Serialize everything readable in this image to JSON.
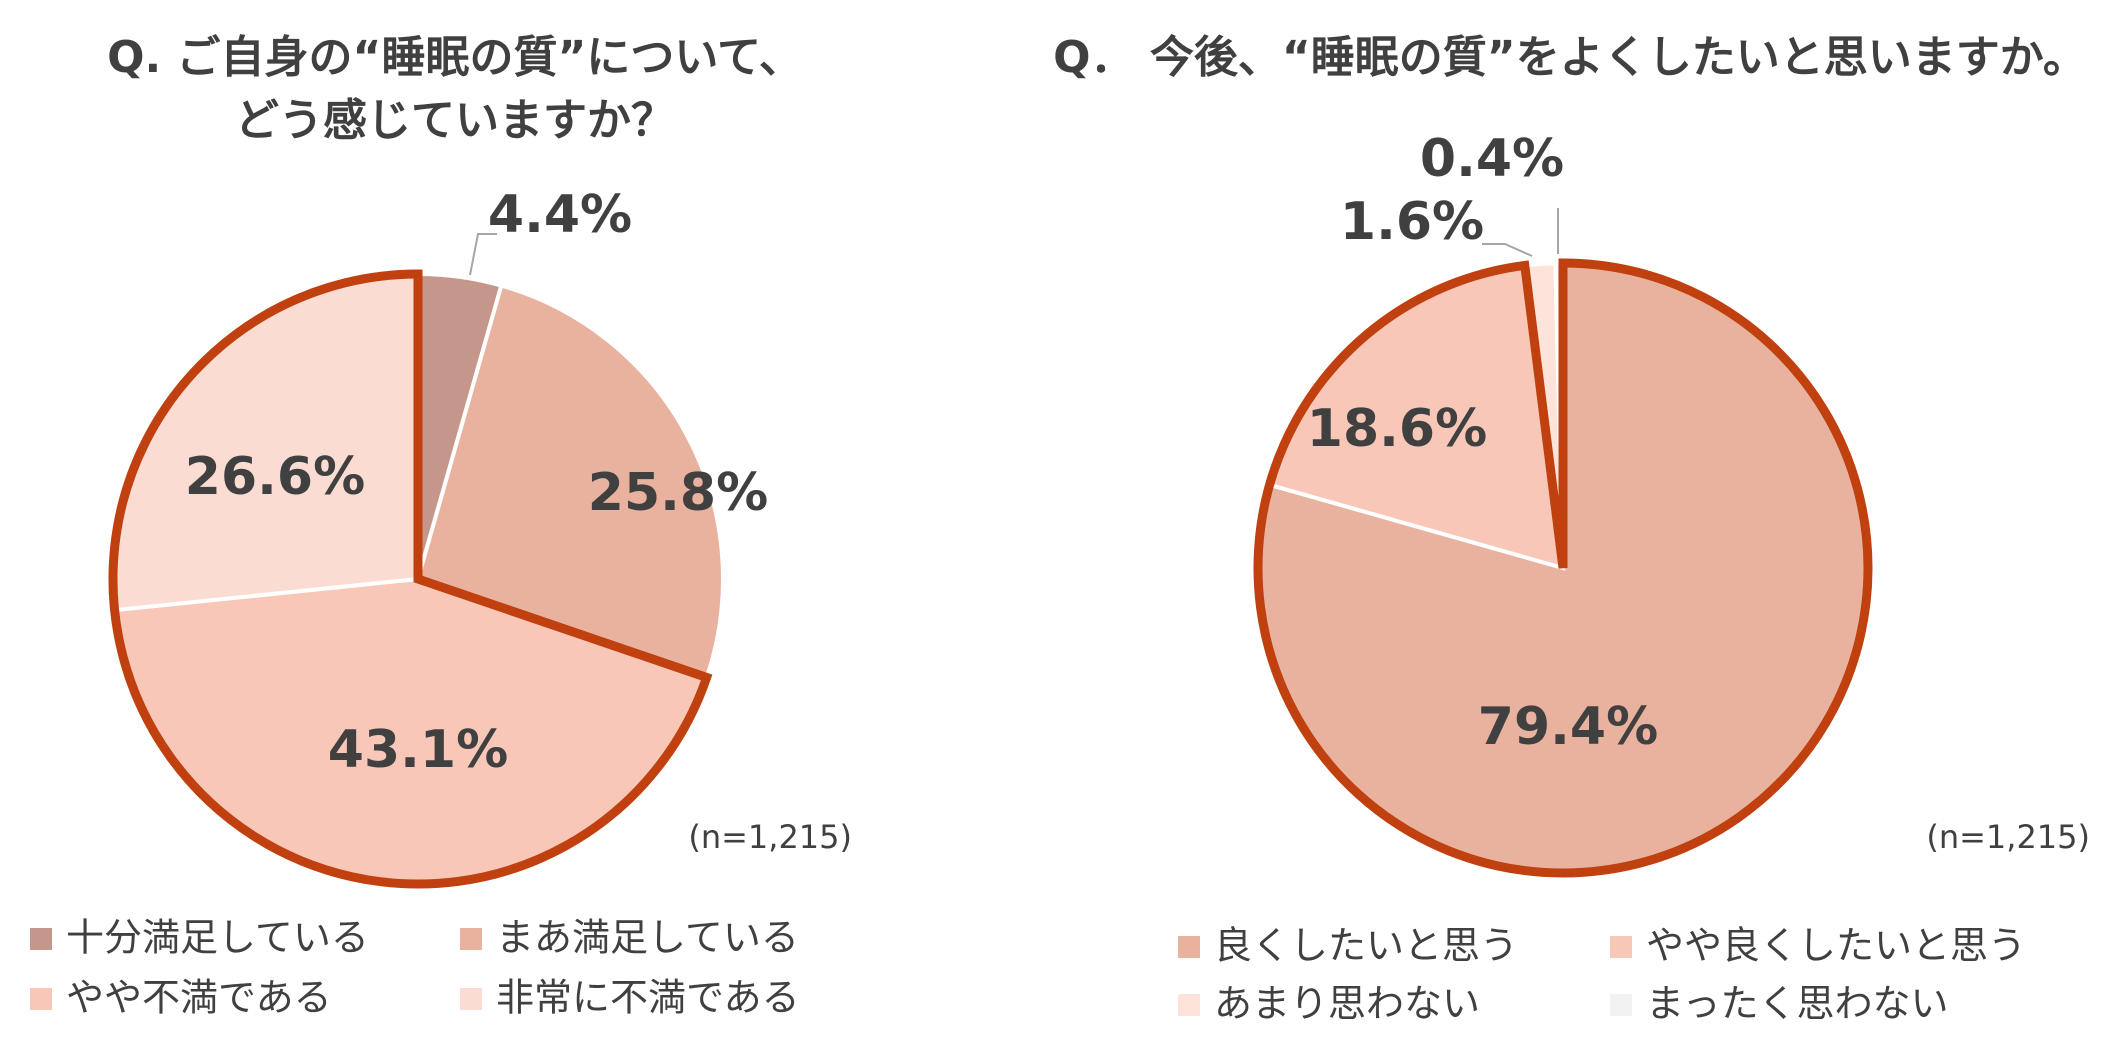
{
  "charts": [
    {
      "title_line1": "Q.  ご自身の“睡眠の質”について、",
      "title_line2": "どう感じていますか？",
      "sample": "(n=1,215)",
      "legend_order": [
        0,
        1,
        2,
        3
      ]
    },
    {
      "title_line1": "Q．  今後、“睡眠の質”をよくしたいと思いますか。",
      "title_line2": "",
      "sample": "(n=1,215)",
      "legend_order": [
        0,
        1,
        2,
        3
      ]
    }
  ],
  "chart_data": [
    {
      "type": "pie",
      "title": "Q.  ご自身の“睡眠の質”について、どう感じていますか？",
      "categories": [
        "十分満足している",
        "まあ満足している",
        "やや不満である",
        "非常に不満である"
      ],
      "values": [
        4.4,
        25.8,
        43.1,
        26.6
      ],
      "labels": [
        "4.4%",
        "25.8%",
        "43.1%",
        "26.6%"
      ],
      "colors": [
        "#c5978a",
        "#e8b29f",
        "#f8c7b7",
        "#fbdcd2"
      ],
      "highlight_color": "#c0400f",
      "highlighted_group": [
        "やや不満である",
        "非常に不満である"
      ],
      "start_angle_deg": 0,
      "direction": "clockwise",
      "legend_placement": "bottom"
    },
    {
      "type": "pie",
      "title": "Q．  今後、“睡眠の質”をよくしたいと思いますか。",
      "categories": [
        "良くしたいと思う",
        "やや良くしたいと思う",
        "あまり思わない",
        "まったく思わない"
      ],
      "values": [
        79.4,
        18.6,
        1.6,
        0.4
      ],
      "labels": [
        "79.4%",
        "18.6%",
        "1.6%",
        "0.4%"
      ],
      "colors": [
        "#e8b29f",
        "#f8c7b7",
        "#fde4da",
        "#f2f2f2"
      ],
      "highlight_color": "#c0400f",
      "highlighted_group": [
        "良くしたいと思う",
        "やや良くしたいと思う"
      ],
      "start_angle_deg": 0,
      "direction": "clockwise",
      "legend_placement": "bottom"
    }
  ]
}
